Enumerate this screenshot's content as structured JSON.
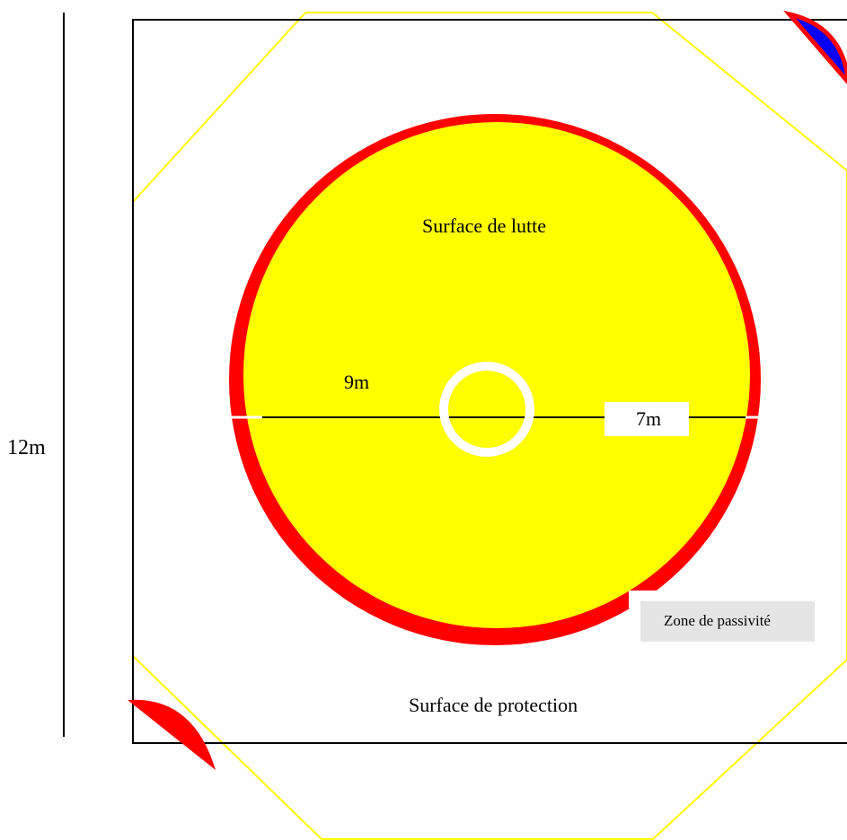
{
  "labels": {
    "wrestling_area": "Surface de lutte",
    "protection_area": "Surface de protection",
    "passivity_zone": "Zone de passivité",
    "outer_dimension": "12m",
    "diameter_9m": "9m",
    "diameter_7m": "7m"
  },
  "colors": {
    "wrestling_area_fill": "#ffff00",
    "passivity_band": "#ff0000",
    "center_circle": "#ffffff",
    "octagon_outline": "#ffff00",
    "mat_outline": "#000000",
    "red_corner": "#ff0000",
    "blue_corner": "#0000ff",
    "passivity_label_bg": "#e5e5e5"
  }
}
